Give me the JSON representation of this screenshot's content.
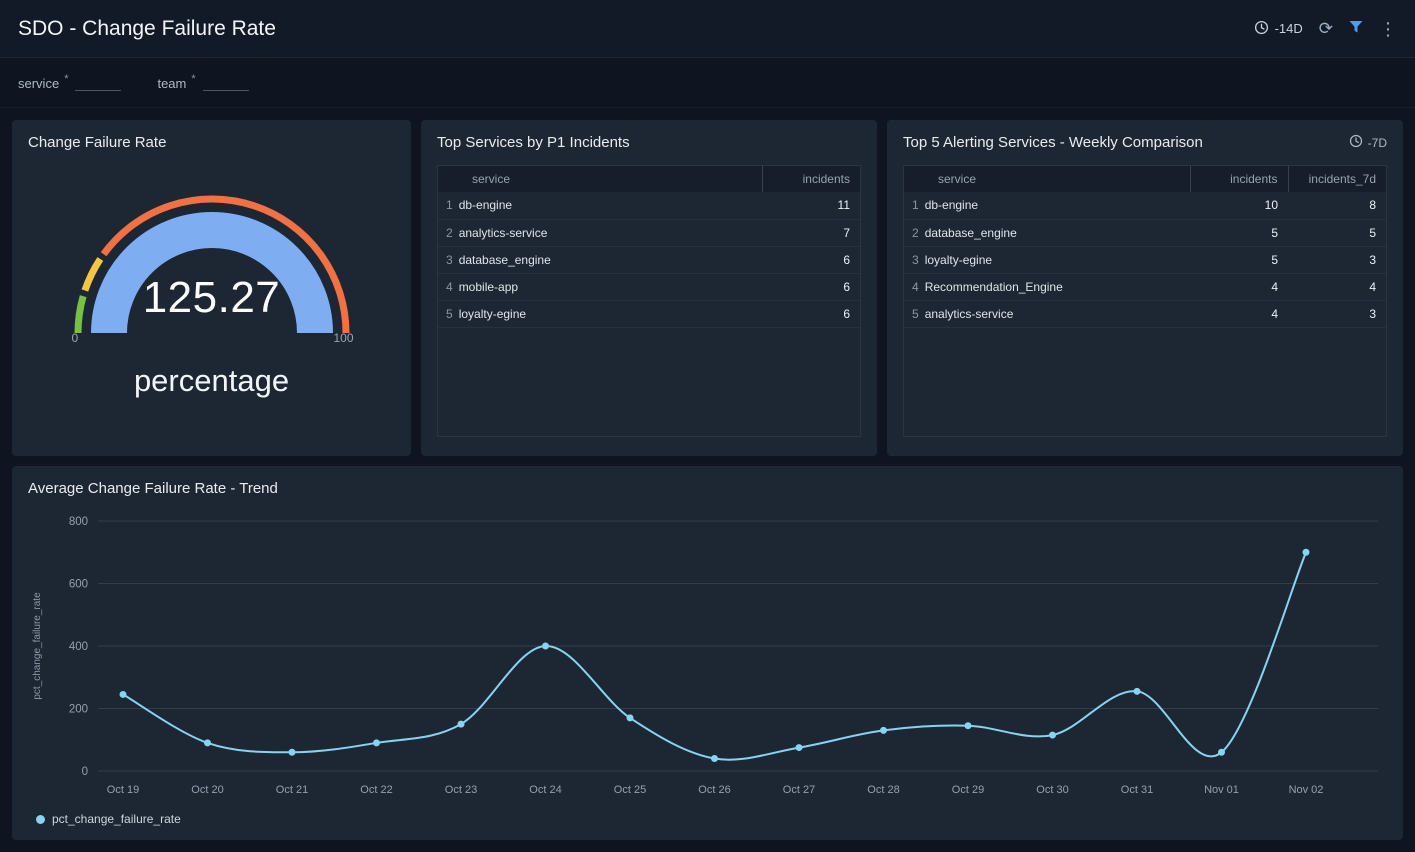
{
  "header": {
    "title": "SDO - Change Failure Rate",
    "time_range": "-14D"
  },
  "icons": {
    "time_picker": "clock",
    "refresh": "⟳",
    "filter": "funnel",
    "menu": "⋮"
  },
  "filters": {
    "service": {
      "label": "service",
      "required_marker": "*",
      "value": ""
    },
    "team": {
      "label": "team",
      "required_marker": "*",
      "value": ""
    }
  },
  "panels": {
    "gauge": {
      "title": "Change Failure Rate",
      "value": "125.27",
      "unit": "percentage",
      "axis_min": "0",
      "axis_max": "100"
    },
    "p1_incidents": {
      "title": "Top Services by P1 Incidents",
      "columns": [
        "service",
        "incidents"
      ],
      "rows": [
        {
          "rank": 1,
          "service": "db-engine",
          "values": [
            11
          ]
        },
        {
          "rank": 2,
          "service": "analytics-service",
          "values": [
            7
          ]
        },
        {
          "rank": 3,
          "service": "database_engine",
          "values": [
            6
          ]
        },
        {
          "rank": 4,
          "service": "mobile-app",
          "values": [
            6
          ]
        },
        {
          "rank": 5,
          "service": "loyalty-egine",
          "values": [
            6
          ]
        }
      ]
    },
    "weekly_comparison": {
      "title": "Top 5 Alerting Services - Weekly Comparison",
      "time_range": "-7D",
      "columns": [
        "service",
        "incidents",
        "incidents_7d"
      ],
      "rows": [
        {
          "rank": 1,
          "service": "db-engine",
          "values": [
            10,
            8
          ]
        },
        {
          "rank": 2,
          "service": "database_engine",
          "values": [
            5,
            5
          ]
        },
        {
          "rank": 3,
          "service": "loyalty-egine",
          "values": [
            5,
            3
          ]
        },
        {
          "rank": 4,
          "service": "Recommendation_Engine",
          "values": [
            4,
            4
          ]
        },
        {
          "rank": 5,
          "service": "analytics-service",
          "values": [
            4,
            3
          ]
        }
      ]
    },
    "trend": {
      "title": "Average Change Failure Rate - Trend"
    }
  },
  "chart_data": {
    "type": "line",
    "title": "Average Change Failure Rate - Trend",
    "x": [
      "Oct 19",
      "Oct 20",
      "Oct 21",
      "Oct 22",
      "Oct 23",
      "Oct 24",
      "Oct 25",
      "Oct 26",
      "Oct 27",
      "Oct 28",
      "Oct 29",
      "Oct 30",
      "Oct 31",
      "Nov 01",
      "Nov 02"
    ],
    "series": [
      {
        "name": "pct_change_failure_rate",
        "values": [
          245,
          90,
          60,
          90,
          150,
          400,
          170,
          40,
          75,
          130,
          145,
          115,
          255,
          60,
          700
        ]
      }
    ],
    "xlabel": "",
    "ylabel": "pct_change_failure_rate",
    "ylim": [
      0,
      800
    ],
    "yticks": [
      0,
      200,
      400,
      600,
      800
    ],
    "grid": true,
    "legend_position": "bottom-left"
  },
  "colors": {
    "accent": "#4b9bf8",
    "line": "#86d3f2",
    "gauge_fill": "#7fadf2",
    "gauge_green": "#77c043",
    "gauge_yellow": "#f3c544",
    "gauge_orange": "#f07143"
  }
}
